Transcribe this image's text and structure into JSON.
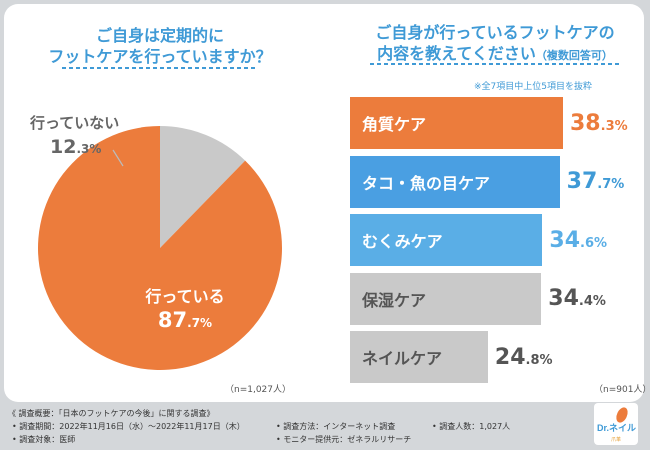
{
  "q1": {
    "title_line1": "ご自身は定期的に",
    "title_line2": "フットケアを行っていますか？",
    "n_label": "（n=1,027人）"
  },
  "q2": {
    "title_line1": "ご自身が行っているフットケアの",
    "title_line2": "内容を教えてください",
    "title_suffix": "（複数回答可）",
    "note": "※全7項目中上位5項目を抜粋",
    "n_label": "（n=901人）"
  },
  "chart_data": [
    {
      "type": "pie",
      "slices": [
        {
          "name": "行っている",
          "value": 87.7,
          "value_int": "87",
          "value_dec": ".7%",
          "color": "#ec7c3c"
        },
        {
          "name": "行っていない",
          "value": 12.3,
          "value_int": "12",
          "value_dec": ".3%",
          "color": "#c9c9c9"
        }
      ]
    },
    {
      "type": "bar",
      "categories": [
        "角質ケア",
        "タコ・魚の目ケア",
        "むくみケア",
        "保湿ケア",
        "ネイルケア"
      ],
      "values": [
        38.3,
        37.7,
        34.6,
        34.4,
        24.8
      ],
      "value_int": [
        "38",
        "37",
        "34",
        "34",
        "24"
      ],
      "value_dec": [
        ".3%",
        ".7%",
        ".6%",
        ".4%",
        ".8%"
      ],
      "colors": [
        "#ec7c3c",
        "#4a9fe2",
        "#5aaee6",
        "#c9c9c9",
        "#c9c9c9"
      ],
      "ylim": [
        0,
        38.3
      ]
    }
  ],
  "footer": {
    "line1": "《 調査概要：「日本のフットケアの今後」に関する調査》",
    "period": "• 調査期間：2022年11月16日（水）～2022年11月17日（木）",
    "method": "• 調査方法：インターネット調査",
    "count": "• 調査人数：1,027人",
    "target": "• 調査対象：医師",
    "provider": "• モニター提供元：ゼネラルリサーチ"
  },
  "logo": {
    "text": "Dr.ネイル",
    "sub": "爪革"
  }
}
